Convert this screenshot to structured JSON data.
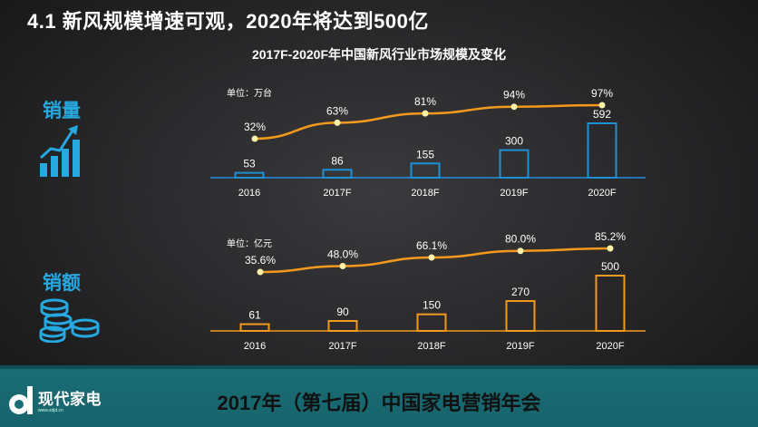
{
  "header": {
    "title": "4.1 新风规模增速可观，2020年将达到500亿",
    "chart_title": "2017F-2020F年中国新风行业市场规模及变化"
  },
  "side": {
    "volume_label": "销量",
    "amount_label": "销额"
  },
  "footer": {
    "title": "2017年（第七届）中国家电营销年会",
    "logo_name": "现代家电",
    "logo_url": "www.xdjd.cn"
  },
  "colors": {
    "volume_accent": "#1e90d8",
    "amount_accent": "#f39a1e",
    "marker": "#fff2a8",
    "footer_bg": "#1a6d75"
  },
  "chart_data": [
    {
      "type": "bar",
      "unit_label": "单位：万台",
      "categories": [
        "2016",
        "2017F",
        "2018F",
        "2019F",
        "2020F"
      ],
      "values": [
        53,
        86,
        155,
        300,
        592
      ],
      "line": {
        "type": "line",
        "values": [
          32,
          63,
          81,
          94,
          97
        ],
        "labels": [
          "32%",
          "63%",
          "81%",
          "94%",
          "97%"
        ]
      }
    },
    {
      "type": "bar",
      "unit_label": "单位：亿元",
      "categories": [
        "2016",
        "2017F",
        "2018F",
        "2019F",
        "2020F"
      ],
      "values": [
        61,
        90,
        150,
        270,
        500
      ],
      "line": {
        "type": "line",
        "values": [
          35.6,
          48.0,
          66.1,
          80.0,
          85.2
        ],
        "labels": [
          "35.6%",
          "48.0%",
          "66.1%",
          "80.0%",
          "85.2%"
        ]
      }
    }
  ]
}
